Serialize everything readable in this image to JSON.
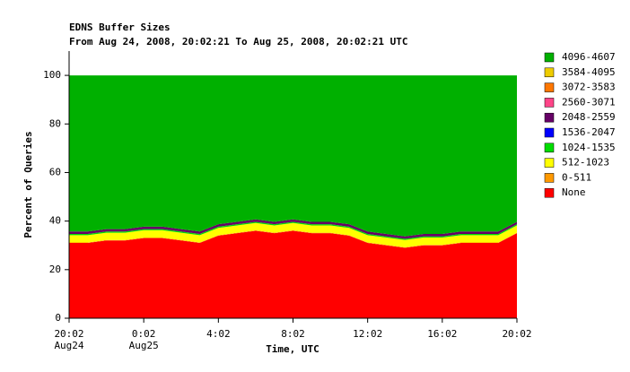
{
  "chart_data": {
    "type": "stacked_area",
    "title": "EDNS Buffer Sizes",
    "subtitle": "From Aug 24, 2008, 20:02:21 To Aug 25, 2008, 20:02:21 UTC",
    "xlabel": "Time, UTC",
    "ylabel": "Percent of Queries",
    "x": [
      0,
      1,
      2,
      3,
      4,
      5,
      6,
      7,
      8,
      9,
      10,
      11,
      12,
      13,
      14,
      15,
      16,
      17,
      18,
      19,
      20,
      21,
      22,
      23,
      24
    ],
    "xlim": [
      0,
      24
    ],
    "xticks": [
      {
        "value": 0,
        "label": "20:02"
      },
      {
        "value": 4,
        "label": "0:02"
      },
      {
        "value": 8,
        "label": "4:02"
      },
      {
        "value": 12,
        "label": "8:02"
      },
      {
        "value": 16,
        "label": "12:02"
      },
      {
        "value": 20,
        "label": "16:02"
      },
      {
        "value": 24,
        "label": "20:02"
      }
    ],
    "xtick_sublabels": [
      {
        "value": 0,
        "label": "Aug24"
      },
      {
        "value": 4,
        "label": "Aug25"
      }
    ],
    "ylim": [
      0,
      110
    ],
    "yticks": [
      0,
      20,
      40,
      60,
      80,
      100
    ],
    "grid": false,
    "legend": "right",
    "series": [
      {
        "name": "None",
        "color": "#ff0000",
        "values": [
          31,
          31,
          32,
          32,
          33,
          33,
          32,
          31,
          34,
          35,
          36,
          35,
          36,
          35,
          35,
          34,
          31,
          30,
          29,
          30,
          30,
          31,
          31,
          31,
          35
        ]
      },
      {
        "name": "0-511",
        "color": "#ff9900",
        "values": [
          0.2,
          0.2,
          0.2,
          0.2,
          0.2,
          0.2,
          0.2,
          0.2,
          0.2,
          0.2,
          0.2,
          0.2,
          0.2,
          0.2,
          0.2,
          0.2,
          0.2,
          0.2,
          0.2,
          0.2,
          0.2,
          0.2,
          0.2,
          0.2,
          0.2
        ]
      },
      {
        "name": "512-1023",
        "color": "#ffff00",
        "values": [
          3,
          3,
          3,
          3,
          3,
          3,
          3,
          3,
          3,
          3,
          3,
          3,
          3,
          3,
          3,
          3,
          3,
          3,
          3,
          3,
          3,
          3,
          3,
          3,
          3
        ]
      },
      {
        "name": "1024-1535",
        "color": "#00dd00",
        "values": [
          0.5,
          0.5,
          0.5,
          0.5,
          0.5,
          0.5,
          0.5,
          0.5,
          0.5,
          0.5,
          0.5,
          0.5,
          0.5,
          0.5,
          0.5,
          0.5,
          0.5,
          0.5,
          0.5,
          0.5,
          0.5,
          0.5,
          0.5,
          0.5,
          0.5
        ]
      },
      {
        "name": "1536-2047",
        "color": "#0000ff",
        "values": [
          0,
          0,
          0,
          0,
          0,
          0,
          0,
          0,
          0,
          0,
          0,
          0,
          0,
          0,
          0,
          0,
          0,
          0,
          0,
          0,
          0,
          0,
          0,
          0,
          0
        ]
      },
      {
        "name": "2048-2559",
        "color": "#660066",
        "values": [
          1,
          1,
          1,
          1,
          1,
          1,
          1,
          1,
          1,
          1,
          1,
          1,
          1,
          1,
          1,
          1,
          1,
          1,
          1,
          1,
          1,
          1,
          1,
          1,
          1
        ]
      },
      {
        "name": "2560-3071",
        "color": "#ff4488",
        "values": [
          0,
          0,
          0,
          0,
          0,
          0,
          0,
          0,
          0,
          0,
          0,
          0,
          0,
          0,
          0,
          0,
          0,
          0,
          0,
          0,
          0,
          0,
          0,
          0,
          0
        ]
      },
      {
        "name": "3072-3583",
        "color": "#ff7700",
        "values": [
          0,
          0,
          0,
          0,
          0,
          0,
          0,
          0,
          0,
          0,
          0,
          0,
          0,
          0,
          0,
          0,
          0,
          0,
          0,
          0,
          0,
          0,
          0,
          0,
          0
        ]
      },
      {
        "name": "3584-4095",
        "color": "#eecc00",
        "values": [
          0,
          0,
          0,
          0,
          0,
          0,
          0,
          0,
          0,
          0,
          0,
          0,
          0,
          0,
          0,
          0,
          0,
          0,
          0,
          0,
          0,
          0,
          0,
          0,
          0
        ]
      },
      {
        "name": "4096-4607",
        "color": "#00b000",
        "values": [
          64.3,
          64.3,
          63.3,
          63.3,
          62.3,
          62.3,
          63.3,
          64.3,
          61.3,
          60.3,
          59.3,
          60.3,
          59.3,
          60.3,
          60.3,
          61.3,
          64.3,
          65.3,
          66.3,
          65.3,
          65.3,
          64.3,
          64.3,
          64.3,
          60.3
        ]
      }
    ]
  }
}
